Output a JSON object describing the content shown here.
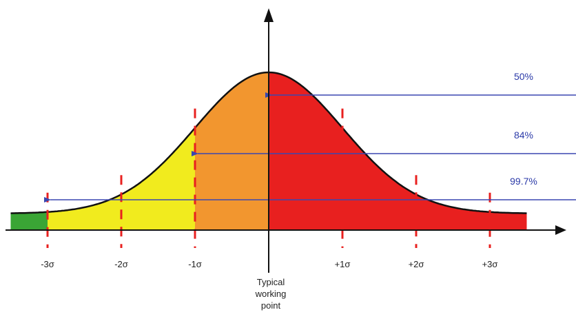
{
  "chart_data": {
    "type": "area",
    "x_ticks": [
      {
        "value": -3,
        "label": "-3σ"
      },
      {
        "value": -2,
        "label": "-2σ"
      },
      {
        "value": -1,
        "label": "-1σ"
      },
      {
        "value": 1,
        "label": "+1σ"
      },
      {
        "value": 2,
        "label": "+2σ"
      },
      {
        "value": 3,
        "label": "+3σ"
      }
    ],
    "xlim": [
      -3.5,
      3.5
    ],
    "regions": [
      {
        "from": -3.5,
        "to": -3,
        "color": "#3aa535"
      },
      {
        "from": -3,
        "to": -1,
        "color": "#f1eb1e"
      },
      {
        "from": -1,
        "to": 0,
        "color": "#f2962f"
      },
      {
        "from": 0,
        "to": 3.5,
        "color": "#e8201f"
      }
    ],
    "coverage_arrows": [
      {
        "label": "50%",
        "to_x": 0
      },
      {
        "label": "84%",
        "to_x": -1
      },
      {
        "label": "99.7%",
        "to_x": -3
      }
    ],
    "working_point": {
      "x": 0,
      "label_lines": [
        "Typical",
        "working",
        "point"
      ]
    },
    "colors": {
      "curve": "#111111",
      "arrow": "#3a47b0",
      "tick": "#e8201f",
      "axis": "#111111"
    }
  }
}
